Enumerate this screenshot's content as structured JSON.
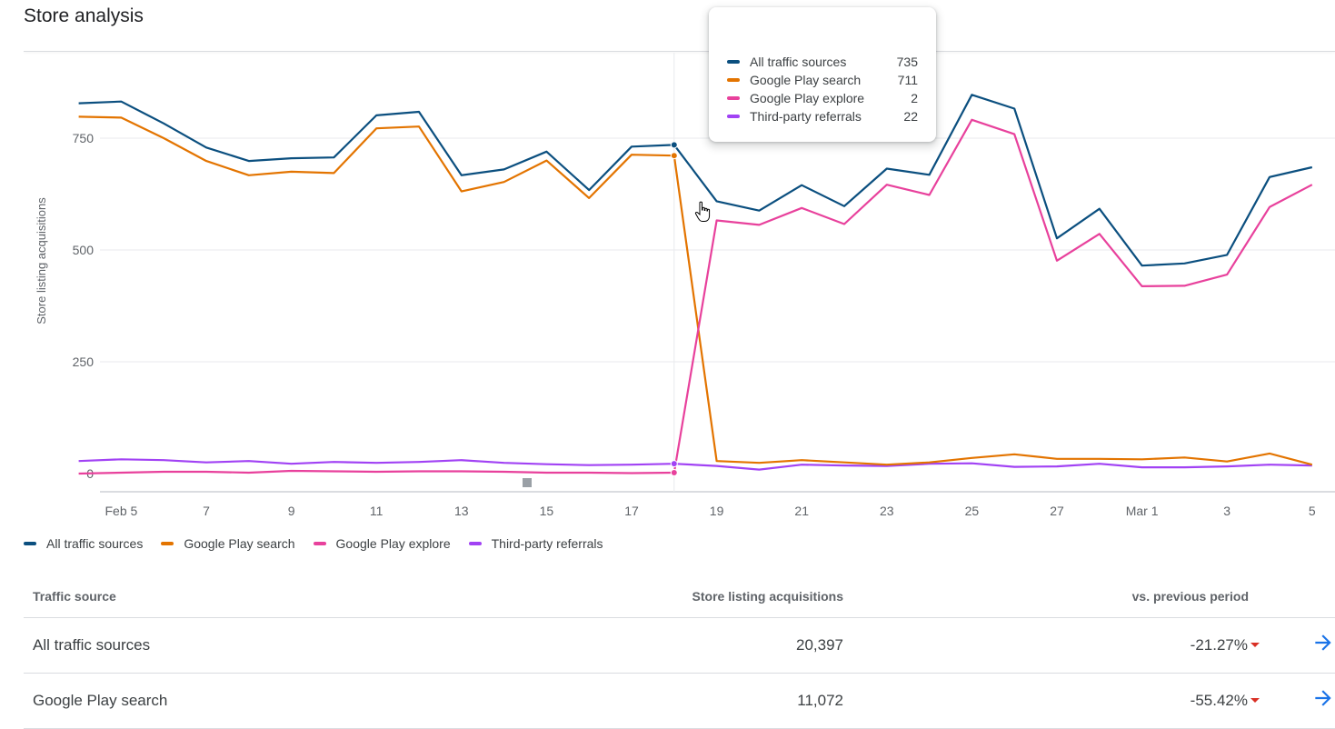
{
  "page": {
    "title": "Store analysis"
  },
  "chart_data": {
    "type": "line",
    "ylabel": "Store listing acquisitions",
    "ylim": [
      0,
      900
    ],
    "yticks": [
      0,
      250,
      500,
      750
    ],
    "x": [
      "Feb 4",
      "Feb 5",
      "Feb 6",
      "Feb 7",
      "Feb 8",
      "Feb 9",
      "Feb 10",
      "Feb 11",
      "Feb 12",
      "Feb 13",
      "Feb 14",
      "Feb 15",
      "Feb 16",
      "Feb 17",
      "Feb 18",
      "Feb 19",
      "Feb 20",
      "Feb 21",
      "Feb 22",
      "Feb 23",
      "Feb 24",
      "Feb 25",
      "Feb 26",
      "Feb 27",
      "Feb 28",
      "Mar 1",
      "Mar 2",
      "Mar 3",
      "Mar 4",
      "Mar 5"
    ],
    "xtick_labels": [
      "Feb 5",
      "7",
      "9",
      "11",
      "13",
      "15",
      "17",
      "19",
      "21",
      "23",
      "25",
      "27",
      "Mar 1",
      "3",
      "5"
    ],
    "xtick_index": [
      1,
      3,
      5,
      7,
      9,
      11,
      13,
      15,
      17,
      19,
      21,
      23,
      25,
      27,
      29
    ],
    "hover_index": 14,
    "series": [
      {
        "name": "All traffic sources",
        "color": "#0b4f7f",
        "values": [
          828,
          832,
          783,
          729,
          699,
          705,
          707,
          801,
          809,
          667,
          680,
          720,
          634,
          731,
          735,
          609,
          588,
          645,
          598,
          682,
          668,
          847,
          816,
          526,
          592,
          465,
          470,
          489,
          663,
          685
        ]
      },
      {
        "name": "Google Play search",
        "color": "#e37400",
        "values": [
          798,
          796,
          750,
          699,
          667,
          675,
          672,
          772,
          776,
          631,
          652,
          700,
          616,
          713,
          711,
          28,
          24,
          30,
          25,
          20,
          25,
          35,
          43,
          33,
          33,
          32,
          36,
          27,
          45,
          20
        ]
      },
      {
        "name": "Google Play explore",
        "color": "#e8419c",
        "values": [
          null,
          null,
          null,
          null,
          null,
          null,
          null,
          null,
          null,
          null,
          null,
          null,
          null,
          null,
          2,
          566,
          556,
          594,
          558,
          646,
          623,
          791,
          759,
          476,
          536,
          419,
          420,
          445,
          596,
          646
        ]
      },
      {
        "name": "Third-party referrals",
        "color": "#a142f4",
        "values": [
          28,
          32,
          30,
          25,
          28,
          22,
          26,
          24,
          26,
          30,
          24,
          21,
          19,
          20,
          22,
          17,
          9,
          20,
          18,
          17,
          22,
          23,
          15,
          16,
          22,
          14,
          14,
          16,
          20,
          18
        ]
      },
      {
        "name": "",
        "color": "#e8419c",
        "values": [
          0,
          2,
          4,
          4,
          2,
          6,
          5,
          4,
          5,
          5,
          4,
          2,
          2,
          1,
          2,
          null,
          null,
          null,
          null,
          null,
          null,
          null,
          null,
          null,
          null,
          null,
          null,
          null,
          null,
          null
        ]
      }
    ]
  },
  "tooltip": {
    "rows": [
      {
        "label": "All traffic sources",
        "value": "735",
        "color": "#0b4f7f"
      },
      {
        "label": "Google Play search",
        "value": "711",
        "color": "#e37400"
      },
      {
        "label": "Google Play explore",
        "value": "2",
        "color": "#e8419c"
      },
      {
        "label": "Third-party referrals",
        "value": "22",
        "color": "#a142f4"
      }
    ]
  },
  "legend": [
    {
      "label": "All traffic sources",
      "color": "#0b4f7f"
    },
    {
      "label": "Google Play search",
      "color": "#e37400"
    },
    {
      "label": "Google Play explore",
      "color": "#e8419c"
    },
    {
      "label": "Third-party referrals",
      "color": "#a142f4"
    }
  ],
  "table": {
    "headers": {
      "source": "Traffic source",
      "acquisitions": "Store listing acquisitions",
      "change": "vs. previous period"
    },
    "rows": [
      {
        "source": "All traffic sources",
        "acquisitions": "20,397",
        "change": "-21.27%"
      },
      {
        "source": "Google Play search",
        "acquisitions": "11,072",
        "change": "-55.42%"
      }
    ]
  },
  "colors": {
    "accent": "#1a73e8",
    "negative": "#d93025"
  }
}
